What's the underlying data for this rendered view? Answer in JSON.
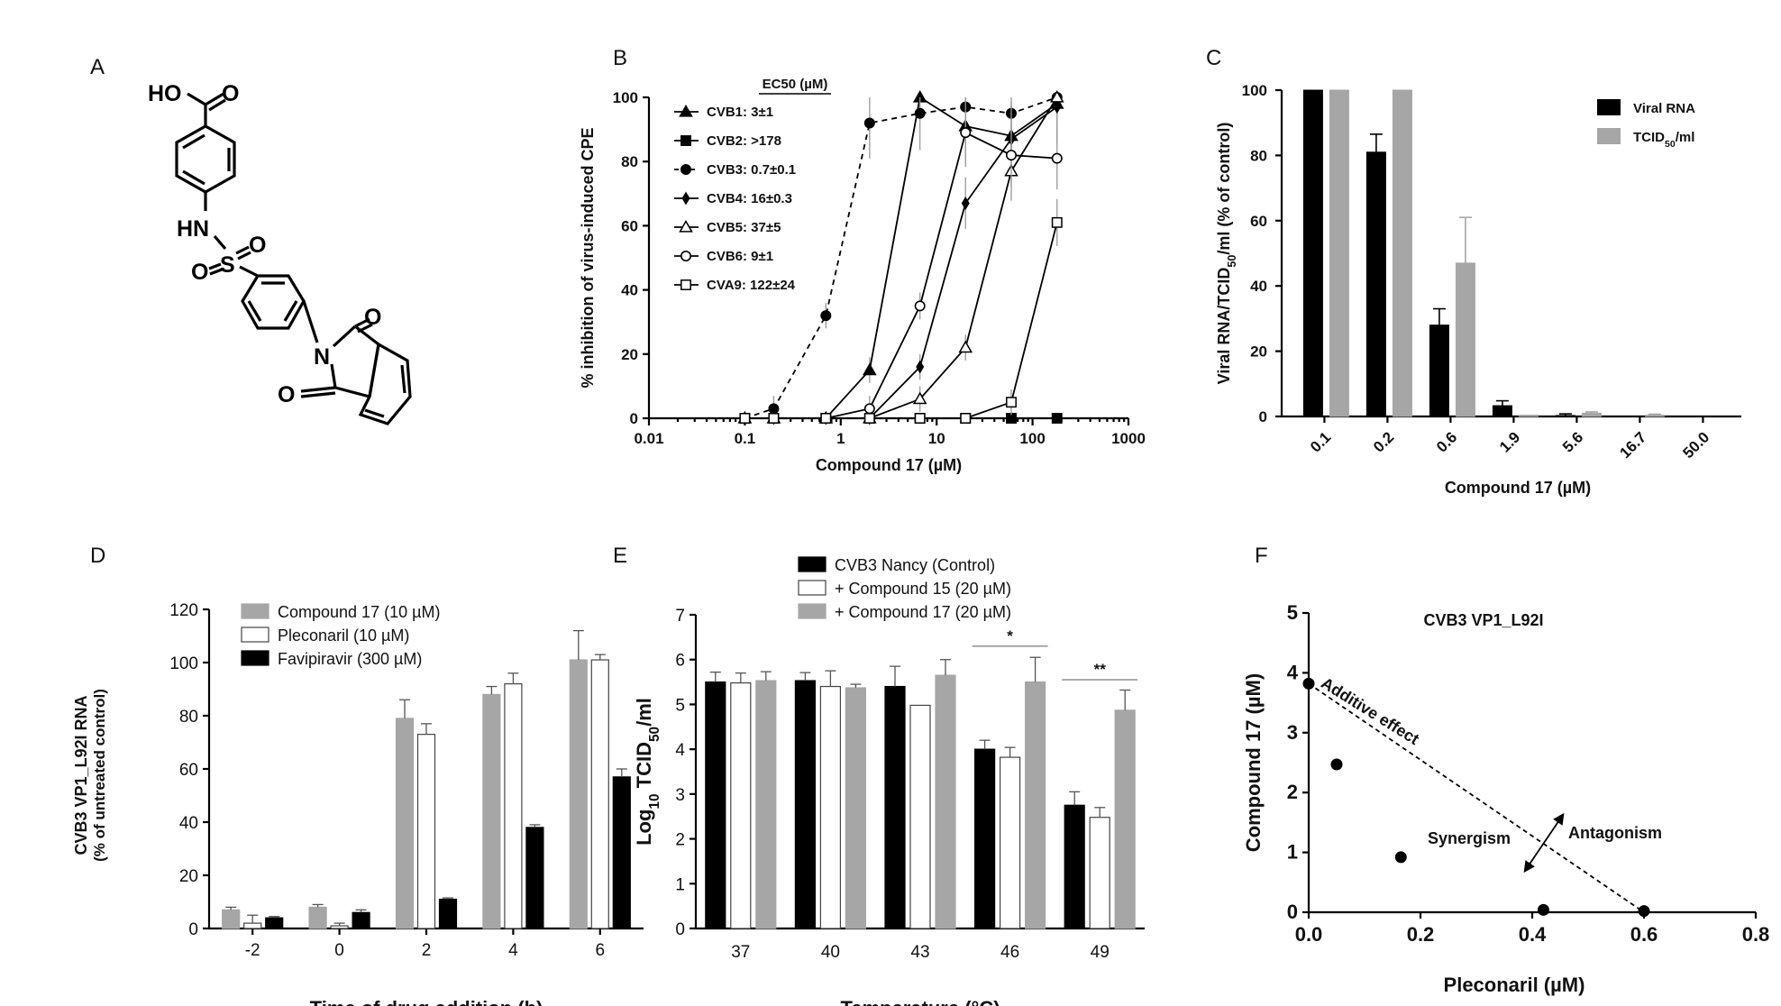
{
  "panel_labels": {
    "a": "A",
    "b": "B",
    "c": "C",
    "d": "D",
    "e": "E",
    "f": "F"
  },
  "structure": {
    "ho": "HO",
    "o1": "O",
    "hn": "HN",
    "s": "S",
    "o2": "O",
    "o3": "O",
    "n": "N",
    "o4": "O",
    "o5": "O"
  },
  "chart_data": [
    {
      "id": "B",
      "type": "line",
      "title": "",
      "xlabel": "Compound 17 (µM)",
      "ylabel": "% inhibition of virus-induced CPE",
      "xscale": "log",
      "xlim": [
        0.01,
        1000
      ],
      "ylim": [
        0,
        100
      ],
      "xticks": [
        "0.01",
        "0.1",
        "1",
        "10",
        "100",
        "1000"
      ],
      "yticks": [
        "0",
        "20",
        "40",
        "60",
        "80",
        "100"
      ],
      "legend_title": "EC50 (µM)",
      "x": [
        0.1,
        0.2,
        0.7,
        2,
        6.7,
        20,
        60,
        180
      ],
      "series": [
        {
          "name": "CVB1: 3±1",
          "marker": "triangle",
          "values": [
            0,
            0,
            0,
            15,
            100,
            91,
            88,
            98
          ]
        },
        {
          "name": "CVB2: >178",
          "marker": "square",
          "values": [
            0,
            0,
            0,
            0,
            0,
            0,
            0,
            0
          ]
        },
        {
          "name": "CVB3: 0.7±0.1",
          "marker": "circle",
          "dashed": true,
          "values": [
            0,
            3,
            32,
            92,
            95,
            97,
            95,
            100
          ]
        },
        {
          "name": "CVB4: 16±0.3",
          "marker": "diamond",
          "values": [
            0,
            0,
            0,
            0,
            16,
            67,
            87,
            97
          ]
        },
        {
          "name": "CVB5: 37±5",
          "marker": "triangle-open",
          "values": [
            0,
            0,
            0,
            0,
            6,
            22,
            77,
            100
          ]
        },
        {
          "name": "CVB6: 9±1",
          "marker": "circle-open",
          "values": [
            0,
            0,
            0,
            3,
            35,
            89,
            82,
            81
          ]
        },
        {
          "name": "CVA9: 122±24",
          "marker": "square-open",
          "values": [
            0,
            0,
            0,
            0,
            0,
            0,
            5,
            61
          ]
        }
      ]
    },
    {
      "id": "C",
      "type": "bar",
      "xlabel": "Compound 17 (µM)",
      "ylabel": "Viral RNA/TCID50/ml (% of control)",
      "ylim": [
        0,
        100
      ],
      "yticks": [
        "0",
        "20",
        "40",
        "60",
        "80",
        "100"
      ],
      "categories": [
        "0.1",
        "0.2",
        "0.6",
        "1.9",
        "5.6",
        "16.7",
        "50.0"
      ],
      "series": [
        {
          "name": "Viral RNA",
          "color": "#000000",
          "values": [
            100,
            81,
            28,
            3.3,
            0.3,
            0,
            0
          ],
          "errors": [
            0,
            5.5,
            5,
            1.5,
            0.5,
            0,
            0
          ]
        },
        {
          "name": "TCID50/ml",
          "color": "#a6a6a6",
          "values": [
            100,
            100,
            47,
            0.4,
            1,
            0.4,
            0
          ],
          "errors": [
            0,
            0,
            14,
            0,
            0.4,
            0.3,
            0
          ]
        }
      ]
    },
    {
      "id": "D",
      "type": "bar",
      "xlabel": "Time of drug addition (h)",
      "ylabel": "CVB3 VP1_L92I RNA",
      "ylabel2": "(% of untreated control)",
      "ylim": [
        0,
        120
      ],
      "yticks": [
        "0",
        "20",
        "40",
        "60",
        "80",
        "100",
        "120"
      ],
      "categories": [
        "-2",
        "0",
        "2",
        "4",
        "6"
      ],
      "series": [
        {
          "name": "Compound 17 (10 µM)",
          "color": "#a6a6a6",
          "values": [
            7,
            8,
            79,
            88,
            101
          ],
          "errors": [
            1,
            1,
            7,
            3,
            11
          ]
        },
        {
          "name": "Pleconaril (10 µM)",
          "color": "#ffffff",
          "values": [
            2,
            1,
            73,
            92,
            101
          ],
          "errors": [
            3,
            1,
            4,
            4,
            2
          ]
        },
        {
          "name": "Favipiravir (300 µM)",
          "color": "#000000",
          "values": [
            4,
            6,
            11,
            38,
            57
          ],
          "errors": [
            0.5,
            1,
            0.5,
            1,
            3
          ]
        }
      ]
    },
    {
      "id": "E",
      "type": "bar",
      "xlabel": "Temperature (°C)",
      "ylabel": "Log10 TCID50/ml",
      "ylim": [
        0,
        7
      ],
      "yticks": [
        "0",
        "1",
        "2",
        "3",
        "4",
        "5",
        "6",
        "7"
      ],
      "categories": [
        "37",
        "40",
        "43",
        "46",
        "49"
      ],
      "series": [
        {
          "name": "CVB3 Nancy (Control)",
          "color": "#000000",
          "values": [
            5.5,
            5.53,
            5.4,
            4.0,
            2.75
          ],
          "errors": [
            0.22,
            0.18,
            0.45,
            0.2,
            0.3
          ]
        },
        {
          "name": "+ Compound 15 (20 µM)",
          "color": "#ffffff",
          "values": [
            5.48,
            5.4,
            4.98,
            3.82,
            2.48
          ],
          "errors": [
            0.22,
            0.35,
            0,
            0.22,
            0.22
          ]
        },
        {
          "name": "+ Compound 17 (20 µM)",
          "color": "#a6a6a6",
          "values": [
            5.53,
            5.37,
            5.65,
            5.5,
            4.87
          ],
          "errors": [
            0.2,
            0.08,
            0.35,
            0.55,
            0.45
          ]
        }
      ],
      "annotations": [
        "*",
        "**"
      ]
    },
    {
      "id": "F",
      "type": "scatter",
      "title": "CVB3 VP1_L92I",
      "xlabel": "Pleconaril (µM)",
      "ylabel": "Compound 17 (µM)",
      "xlim": [
        0,
        0.8
      ],
      "ylim": [
        0,
        5
      ],
      "xticks": [
        "0.0",
        "0.2",
        "0.4",
        "0.6",
        "0.8"
      ],
      "yticks": [
        "0",
        "1",
        "2",
        "3",
        "4",
        "5"
      ],
      "points": [
        {
          "x": 0,
          "y": 3.82
        },
        {
          "x": 0.05,
          "y": 2.47
        },
        {
          "x": 0.165,
          "y": 0.92
        },
        {
          "x": 0.42,
          "y": 0.04
        },
        {
          "x": 0.6,
          "y": 0.02
        }
      ],
      "line": {
        "from": [
          0,
          3.82
        ],
        "to": [
          0.6,
          0
        ]
      },
      "annotations": {
        "additive": "Additive effect",
        "synergism": "Synergism",
        "antagonism": "Antagonism"
      }
    }
  ]
}
